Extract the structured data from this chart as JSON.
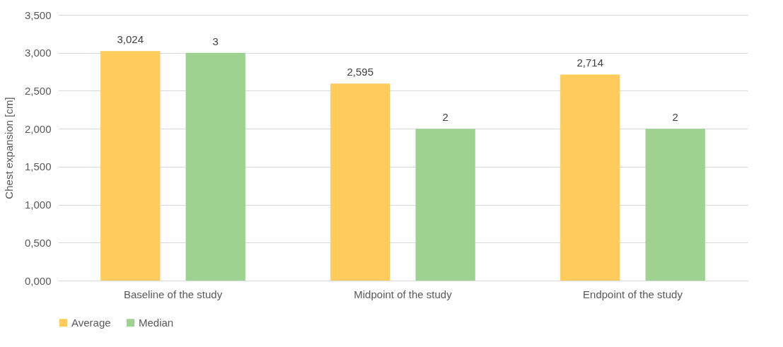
{
  "chart_data": {
    "type": "bar",
    "ylabel": "Chest expansion [cm]",
    "categories": [
      "Baseline of the study",
      "Midpoint of the study",
      "Endpoint of the study"
    ],
    "series": [
      {
        "name": "Average",
        "color": "#ffcc5c",
        "values": [
          3.024,
          2.595,
          2.714
        ],
        "value_labels": [
          "3,024",
          "2,595",
          "2,714"
        ]
      },
      {
        "name": "Median",
        "color": "#9dd290",
        "values": [
          3,
          2,
          2
        ],
        "value_labels": [
          "3",
          "2",
          "2"
        ]
      }
    ],
    "ylim": [
      0,
      3.5
    ],
    "yticks": [
      {
        "value": 0,
        "label": "0,000"
      },
      {
        "value": 0.5,
        "label": "0,500"
      },
      {
        "value": 1,
        "label": "1,000"
      },
      {
        "value": 1.5,
        "label": "1,500"
      },
      {
        "value": 2,
        "label": "2,000"
      },
      {
        "value": 2.5,
        "label": "2,500"
      },
      {
        "value": 3,
        "label": "3,000"
      },
      {
        "value": 3.5,
        "label": "3,500"
      }
    ],
    "grid": "y",
    "legend": "bottom"
  }
}
